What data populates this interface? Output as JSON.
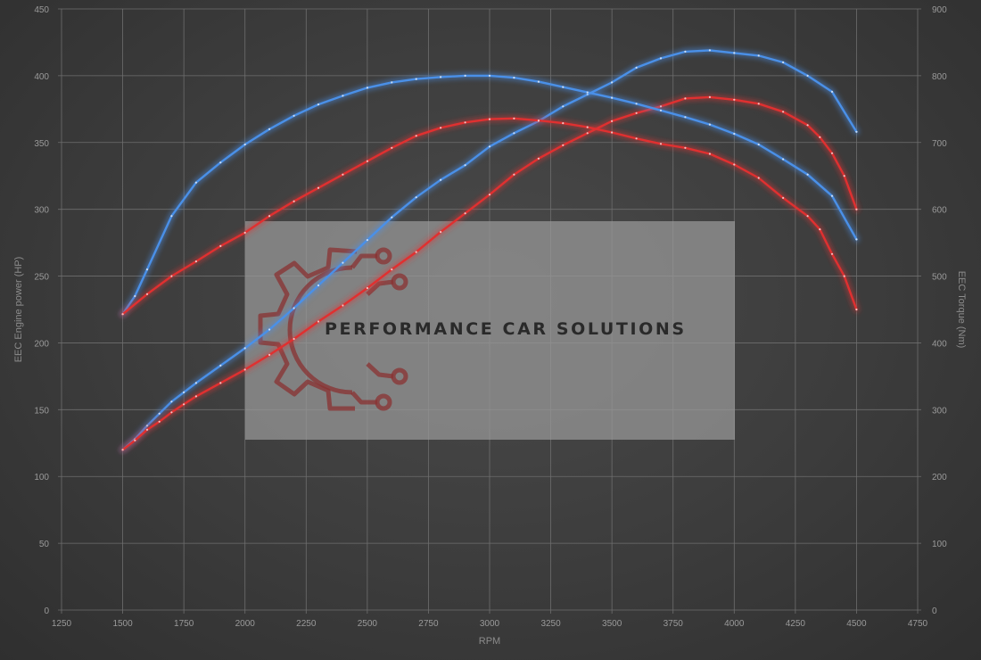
{
  "watermark": {
    "text": "PERFORMANCE CAR SOLUTIONS"
  },
  "chart_data": {
    "type": "line",
    "xlabel": "RPM",
    "ylabel_left": "EEC Engine power (HP)",
    "ylabel_right": "EEC Torque (Nm)",
    "xlim": [
      1250,
      4750
    ],
    "xticks": [
      1250,
      1500,
      1750,
      2000,
      2250,
      2500,
      2750,
      3000,
      3250,
      3500,
      3750,
      4000,
      4250,
      4500,
      4750
    ],
    "ylim_left": [
      0,
      450
    ],
    "yticks_left": [
      0,
      50,
      100,
      150,
      200,
      250,
      300,
      350,
      400,
      450
    ],
    "ylim_right": [
      0,
      900
    ],
    "yticks_right": [
      0,
      100,
      200,
      300,
      400,
      500,
      600,
      700,
      800,
      900
    ],
    "grid": true,
    "series": [
      {
        "color": "#4a90e8",
        "axis": "left",
        "line_type": "power",
        "x": [
          1500,
          1550,
          1600,
          1650,
          1700,
          1750,
          1800,
          1900,
          2000,
          2100,
          2200,
          2300,
          2400,
          2500,
          2600,
          2700,
          2800,
          2900,
          3000,
          3100,
          3200,
          3300,
          3400,
          3500,
          3600,
          3700,
          3800,
          3900,
          4000,
          4100,
          4200,
          4300,
          4400,
          4500
        ],
        "y": [
          120,
          128,
          138,
          147,
          156,
          163,
          170,
          183,
          196,
          210,
          226,
          243,
          260,
          277,
          294,
          309,
          322,
          333,
          347,
          357,
          366,
          377,
          386,
          395,
          406,
          413,
          418,
          419,
          417,
          415,
          410,
          400,
          388,
          358
        ]
      },
      {
        "color": "#e03030",
        "axis": "left",
        "line_type": "power",
        "x": [
          1500,
          1550,
          1600,
          1650,
          1700,
          1750,
          1800,
          1900,
          2000,
          2100,
          2200,
          2300,
          2400,
          2500,
          2600,
          2700,
          2800,
          2900,
          3000,
          3100,
          3200,
          3300,
          3400,
          3500,
          3600,
          3700,
          3800,
          3900,
          4000,
          4100,
          4200,
          4300,
          4350,
          4400,
          4450,
          4500
        ],
        "y": [
          120,
          127,
          135,
          141,
          148,
          154,
          160,
          170,
          180,
          191,
          203,
          216,
          228,
          241,
          255,
          268,
          283,
          297,
          311,
          326,
          338,
          348,
          357,
          366,
          372,
          377,
          383,
          384,
          382,
          379,
          373,
          363,
          354,
          342,
          325,
          300
        ]
      },
      {
        "color": "#4a90e8",
        "axis": "right",
        "line_type": "torque",
        "x": [
          1500,
          1550,
          1600,
          1700,
          1800,
          1900,
          2000,
          2100,
          2200,
          2300,
          2400,
          2500,
          2600,
          2700,
          2800,
          2900,
          3000,
          3100,
          3200,
          3300,
          3400,
          3500,
          3600,
          3700,
          3800,
          3900,
          4000,
          4100,
          4200,
          4300,
          4400,
          4500
        ],
        "y": [
          443,
          470,
          510,
          590,
          640,
          670,
          697,
          720,
          740,
          757,
          770,
          782,
          790,
          795,
          798,
          800,
          800,
          797,
          791,
          783,
          775,
          767,
          758,
          748,
          738,
          727,
          713,
          697,
          675,
          652,
          620,
          555
        ]
      },
      {
        "color": "#e03030",
        "axis": "right",
        "line_type": "torque",
        "x": [
          1500,
          1600,
          1700,
          1800,
          1900,
          2000,
          2100,
          2200,
          2300,
          2400,
          2500,
          2600,
          2700,
          2800,
          2900,
          3000,
          3100,
          3200,
          3300,
          3400,
          3500,
          3600,
          3700,
          3800,
          3900,
          4000,
          4100,
          4200,
          4300,
          4350,
          4400,
          4450,
          4500
        ],
        "y": [
          443,
          473,
          500,
          522,
          545,
          565,
          590,
          612,
          632,
          652,
          672,
          692,
          710,
          722,
          730,
          735,
          736,
          733,
          729,
          723,
          715,
          706,
          698,
          692,
          683,
          667,
          647,
          617,
          590,
          570,
          533,
          500,
          450
        ]
      }
    ]
  }
}
